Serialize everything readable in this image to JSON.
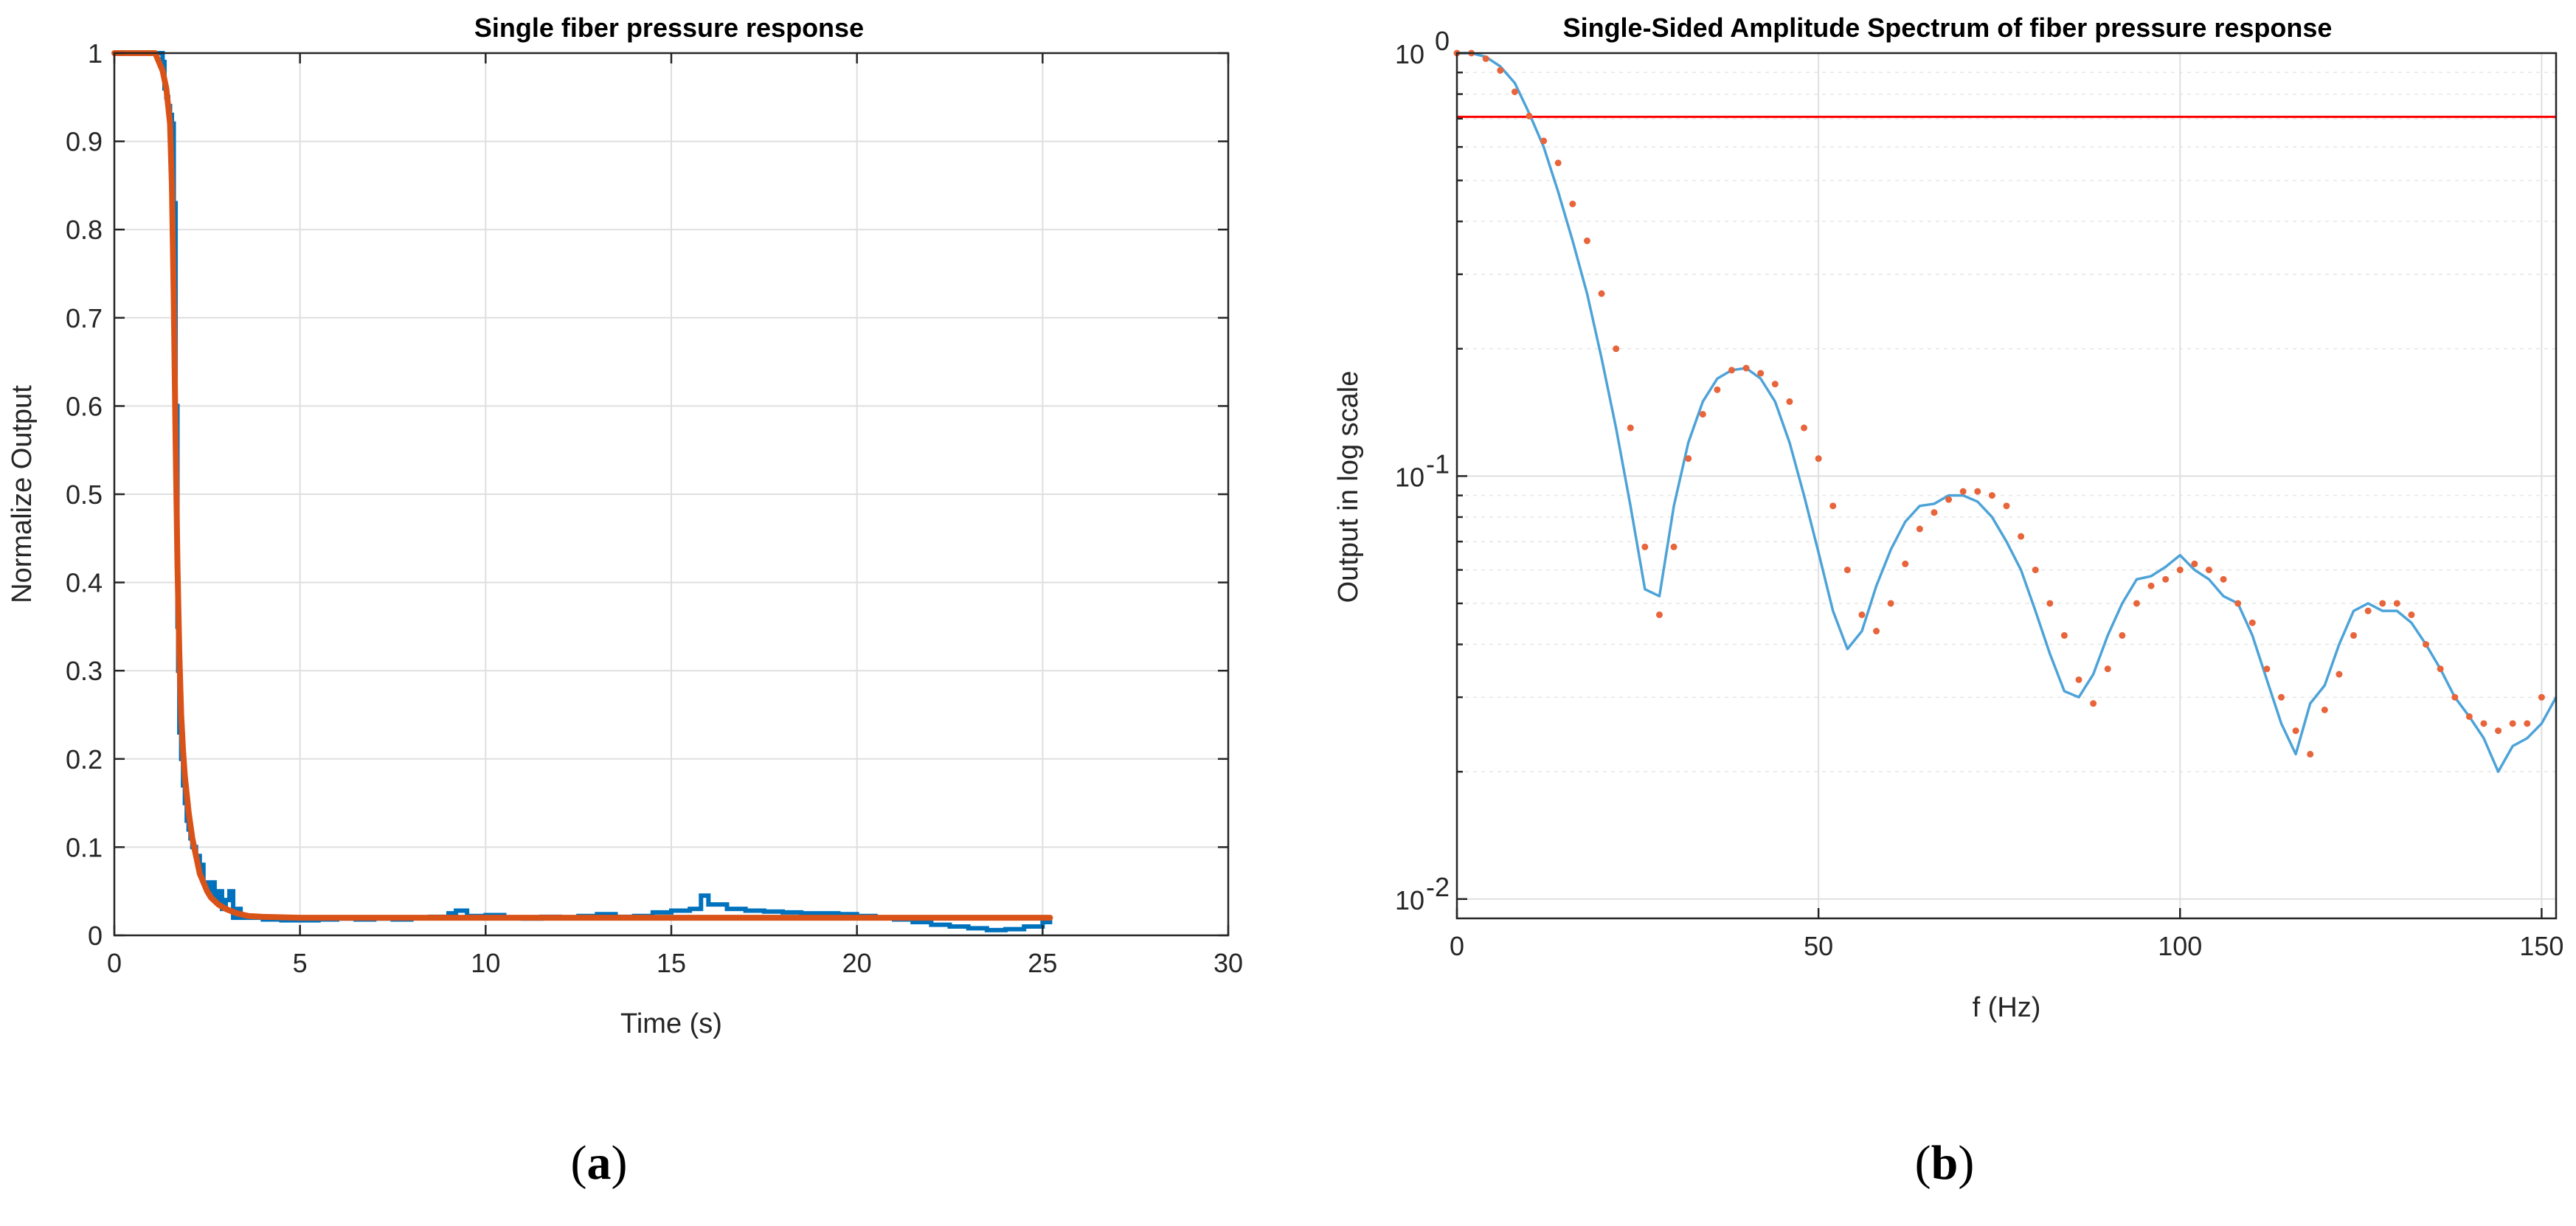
{
  "chart_data": [
    {
      "type": "line",
      "title": "Single fiber pressure response",
      "xlabel": "Time (s)",
      "ylabel": "Normalize Output",
      "xlim": [
        0,
        30
      ],
      "ylim": [
        0,
        1
      ],
      "xticks": [
        0,
        5,
        10,
        15,
        20,
        25,
        30
      ],
      "yticks": [
        0,
        0.1,
        0.2,
        0.3,
        0.4,
        0.5,
        0.6,
        0.7,
        0.8,
        0.9,
        1
      ],
      "grid": true,
      "colors": {
        "measured": "#0072BD",
        "fit": "#D95319"
      },
      "series": [
        {
          "x": [
            0,
            1.0,
            1.2,
            1.3,
            1.35,
            1.4,
            1.45,
            1.5,
            1.55,
            1.6,
            1.65,
            1.7,
            1.72,
            1.75,
            1.8,
            1.85,
            1.9,
            1.95,
            2.0,
            2.05,
            2.1,
            2.2,
            2.3,
            2.4,
            2.5,
            2.6,
            2.7,
            2.8,
            2.9,
            3.0,
            3.1,
            3.2,
            3.3,
            3.4,
            3.5,
            3.7,
            4.0,
            4.5,
            5.0,
            5.5,
            6.0,
            6.5,
            7.0,
            7.5,
            8.0,
            8.5,
            9.0,
            9.2,
            9.5,
            10.0,
            10.5,
            11.0,
            11.5,
            12.0,
            12.5,
            13.0,
            13.5,
            14.0,
            14.5,
            15.0,
            15.5,
            15.8,
            16.0,
            16.5,
            17.0,
            17.5,
            18.0,
            18.5,
            19.0,
            19.5,
            20.0,
            20.5,
            21.0,
            21.5,
            22.0,
            22.5,
            23.0,
            23.5,
            24.0,
            24.5,
            25.0,
            25.2
          ],
          "y": [
            1.0,
            1.0,
            1.0,
            0.99,
            0.96,
            0.95,
            0.94,
            0.93,
            0.92,
            0.83,
            0.6,
            0.35,
            0.3,
            0.23,
            0.2,
            0.17,
            0.15,
            0.13,
            0.12,
            0.11,
            0.1,
            0.09,
            0.08,
            0.06,
            0.05,
            0.06,
            0.04,
            0.05,
            0.03,
            0.04,
            0.05,
            0.02,
            0.03,
            0.02,
            0.02,
            0.02,
            0.018,
            0.017,
            0.017,
            0.018,
            0.019,
            0.018,
            0.019,
            0.018,
            0.02,
            0.021,
            0.025,
            0.028,
            0.022,
            0.023,
            0.02,
            0.019,
            0.021,
            0.02,
            0.022,
            0.024,
            0.021,
            0.022,
            0.026,
            0.028,
            0.03,
            0.045,
            0.035,
            0.03,
            0.028,
            0.027,
            0.026,
            0.025,
            0.025,
            0.024,
            0.022,
            0.02,
            0.018,
            0.015,
            0.012,
            0.01,
            0.008,
            0.006,
            0.007,
            0.01,
            0.015,
            0.018
          ]
        },
        {
          "x": [
            0,
            1.0,
            1.1,
            1.2,
            1.3,
            1.4,
            1.5,
            1.55,
            1.6,
            1.65,
            1.7,
            1.75,
            1.8,
            1.85,
            1.9,
            2.0,
            2.1,
            2.2,
            2.3,
            2.4,
            2.5,
            2.6,
            2.8,
            3.0,
            3.3,
            3.6,
            4.0,
            5.0,
            10.0,
            15.0,
            20.0,
            25.0,
            25.2
          ],
          "y": [
            1.0,
            1.0,
            1.0,
            0.99,
            0.98,
            0.96,
            0.92,
            0.85,
            0.72,
            0.56,
            0.42,
            0.32,
            0.25,
            0.21,
            0.18,
            0.14,
            0.11,
            0.09,
            0.07,
            0.06,
            0.05,
            0.043,
            0.035,
            0.03,
            0.025,
            0.022,
            0.021,
            0.02,
            0.02,
            0.02,
            0.02,
            0.02,
            0.02
          ]
        }
      ]
    },
    {
      "type": "line",
      "title": "Single-Sided Amplitude Spectrum of fiber pressure response",
      "xlabel": "f (Hz)",
      "ylabel": "Output in log scale",
      "yscale": "log",
      "xlim": [
        0,
        152
      ],
      "ylim": [
        0.009,
        1
      ],
      "xticks": [
        0,
        50,
        100,
        150
      ],
      "yticks": [
        {
          "value": 1,
          "base": "10",
          "exp": "0"
        },
        {
          "value": 0.1,
          "base": "10",
          "exp": "-1"
        },
        {
          "value": 0.01,
          "base": "10",
          "exp": "-2"
        }
      ],
      "grid": true,
      "colors": {
        "spectrum": "#4DA3D8",
        "points": "#E8643A",
        "threshold": "#FF0000"
      },
      "threshold": 0.707,
      "series": [
        {
          "x": [
            0,
            2,
            4,
            6,
            8,
            10,
            12,
            14,
            16,
            18,
            20,
            22,
            24,
            26,
            28,
            30,
            32,
            34,
            36,
            38,
            40,
            42,
            44,
            46,
            48,
            50,
            52,
            54,
            56,
            58,
            60,
            62,
            64,
            66,
            68,
            70,
            72,
            74,
            76,
            78,
            80,
            82,
            84,
            86,
            88,
            90,
            92,
            94,
            96,
            98,
            100,
            102,
            104,
            106,
            108,
            110,
            112,
            114,
            116,
            118,
            120,
            122,
            124,
            126,
            128,
            130,
            132,
            134,
            136,
            138,
            140,
            142,
            144,
            146,
            148,
            150,
            152
          ],
          "y": [
            1.0,
            1.0,
            0.98,
            0.93,
            0.85,
            0.72,
            0.6,
            0.47,
            0.36,
            0.27,
            0.19,
            0.13,
            0.085,
            0.054,
            0.052,
            0.085,
            0.12,
            0.15,
            0.17,
            0.178,
            0.18,
            0.17,
            0.15,
            0.12,
            0.09,
            0.066,
            0.048,
            0.039,
            0.043,
            0.055,
            0.067,
            0.078,
            0.085,
            0.086,
            0.09,
            0.09,
            0.087,
            0.08,
            0.07,
            0.06,
            0.048,
            0.038,
            0.031,
            0.03,
            0.034,
            0.042,
            0.05,
            0.057,
            0.058,
            0.061,
            0.065,
            0.06,
            0.057,
            0.052,
            0.05,
            0.042,
            0.033,
            0.026,
            0.022,
            0.029,
            0.032,
            0.04,
            0.048,
            0.05,
            0.048,
            0.048,
            0.045,
            0.04,
            0.035,
            0.03,
            0.027,
            0.024,
            0.02,
            0.023,
            0.024,
            0.026,
            0.03
          ]
        },
        {
          "x": [
            0,
            2,
            4,
            6,
            8,
            10,
            12,
            14,
            16,
            18,
            20,
            22,
            24,
            26,
            28,
            30,
            32,
            34,
            36,
            38,
            40,
            42,
            44,
            46,
            48,
            50,
            52,
            54,
            56,
            58,
            60,
            62,
            64,
            66,
            68,
            70,
            72,
            74,
            76,
            78,
            80,
            82,
            84,
            86,
            88,
            90,
            92,
            94,
            96,
            98,
            100,
            102,
            104,
            106,
            108,
            110,
            112,
            114,
            116,
            118,
            120,
            122,
            124,
            126,
            128,
            130,
            132,
            134,
            136,
            138,
            140,
            142,
            144,
            146,
            148,
            150
          ],
          "y": [
            1.0,
            1.0,
            0.97,
            0.91,
            0.81,
            0.71,
            0.62,
            0.55,
            0.44,
            0.36,
            0.27,
            0.2,
            0.13,
            0.068,
            0.047,
            0.068,
            0.11,
            0.14,
            0.16,
            0.178,
            0.18,
            0.175,
            0.165,
            0.15,
            0.13,
            0.11,
            0.085,
            0.06,
            0.047,
            0.043,
            0.05,
            0.062,
            0.075,
            0.082,
            0.088,
            0.092,
            0.092,
            0.09,
            0.085,
            0.072,
            0.06,
            0.05,
            0.042,
            0.033,
            0.029,
            0.035,
            0.042,
            0.05,
            0.055,
            0.057,
            0.06,
            0.062,
            0.06,
            0.057,
            0.05,
            0.045,
            0.035,
            0.03,
            0.025,
            0.022,
            0.028,
            0.034,
            0.042,
            0.048,
            0.05,
            0.05,
            0.047,
            0.04,
            0.035,
            0.03,
            0.027,
            0.026,
            0.025,
            0.026,
            0.026,
            0.03
          ]
        }
      ]
    }
  ],
  "captions": {
    "a": "(a)",
    "b": "(b)"
  }
}
